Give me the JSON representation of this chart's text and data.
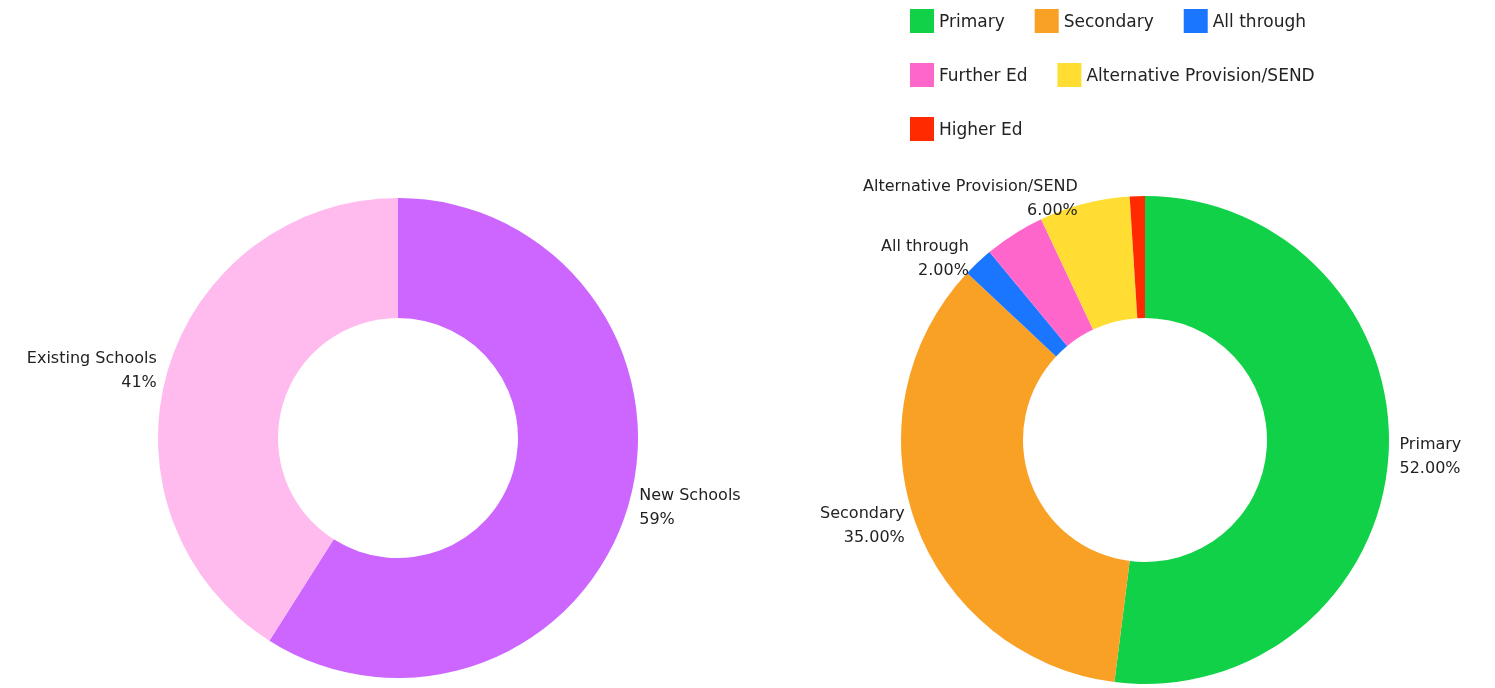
{
  "chart_data": [
    {
      "type": "donut",
      "categories": [
        "New Schools",
        "Existing Schools"
      ],
      "values": [
        59,
        41
      ],
      "value_labels": [
        "59%",
        "41%"
      ],
      "colors": [
        "#cc66ff",
        "#ffbbee"
      ],
      "legend": false
    },
    {
      "type": "donut",
      "categories": [
        "Primary",
        "Secondary",
        "All through",
        "Further Ed",
        "Alternative Provision/SEND",
        "Higher Ed"
      ],
      "values": [
        52,
        35,
        2,
        4,
        6,
        1
      ],
      "value_labels": [
        "52.00%",
        "35.00%",
        "2.00%",
        null,
        "6.00%",
        null
      ],
      "colors": [
        "#11d148",
        "#f9a125",
        "#1a75ff",
        "#ff66cc",
        "#ffdd33",
        "#ff2a00"
      ],
      "legend": "top"
    }
  ]
}
